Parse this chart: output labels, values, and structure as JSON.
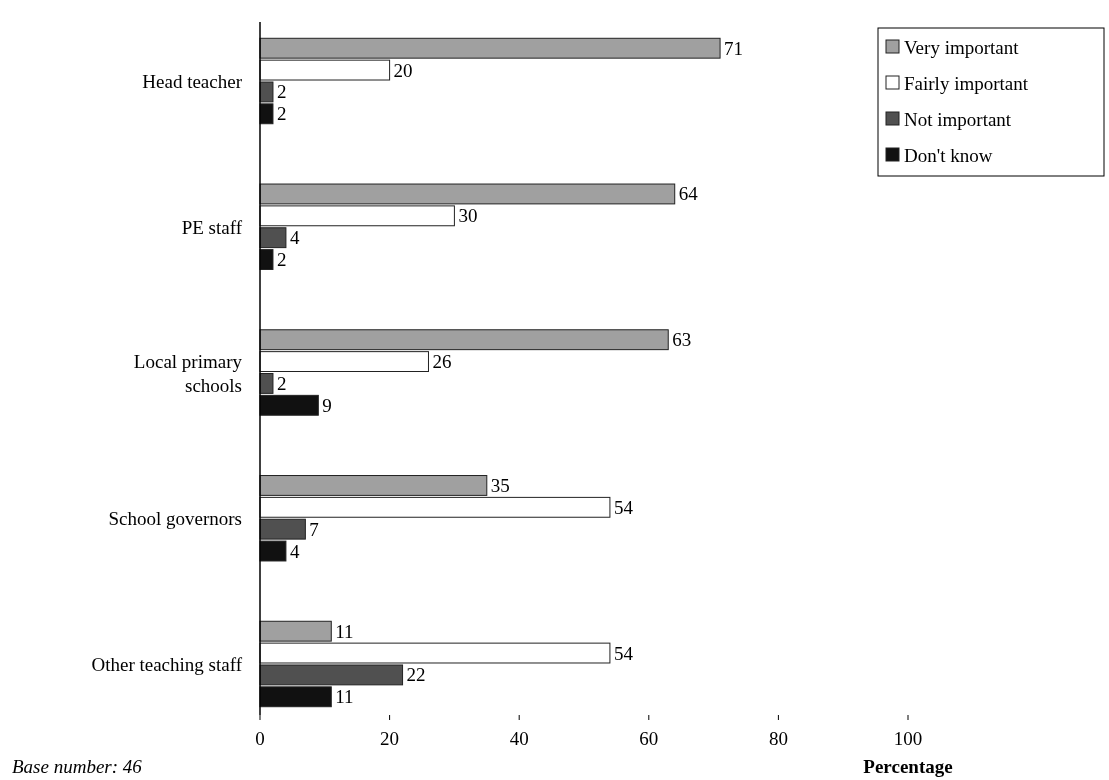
{
  "chart_data": {
    "type": "bar",
    "orientation": "horizontal",
    "categories": [
      "Head teacher",
      "PE staff",
      "Local primary schools",
      "School governors",
      "Other teaching staff"
    ],
    "series": [
      {
        "name": "Very important",
        "color": "#a0a0a0",
        "values": [
          71,
          64,
          63,
          35,
          11
        ]
      },
      {
        "name": "Fairly important",
        "color": "#ffffff",
        "values": [
          20,
          30,
          26,
          54,
          54
        ]
      },
      {
        "name": "Not important",
        "color": "#505050",
        "values": [
          2,
          4,
          2,
          7,
          22
        ]
      },
      {
        "name": "Don't know",
        "color": "#111111",
        "values": [
          2,
          2,
          9,
          4,
          11
        ]
      }
    ],
    "xlim": [
      0,
      100
    ],
    "xticks": [
      0,
      20,
      40,
      60,
      80,
      100
    ],
    "xlabel": "Percentage",
    "data_labels": true,
    "legend": "top right",
    "grid": false,
    "annotations": [
      "Base number: 46"
    ]
  }
}
